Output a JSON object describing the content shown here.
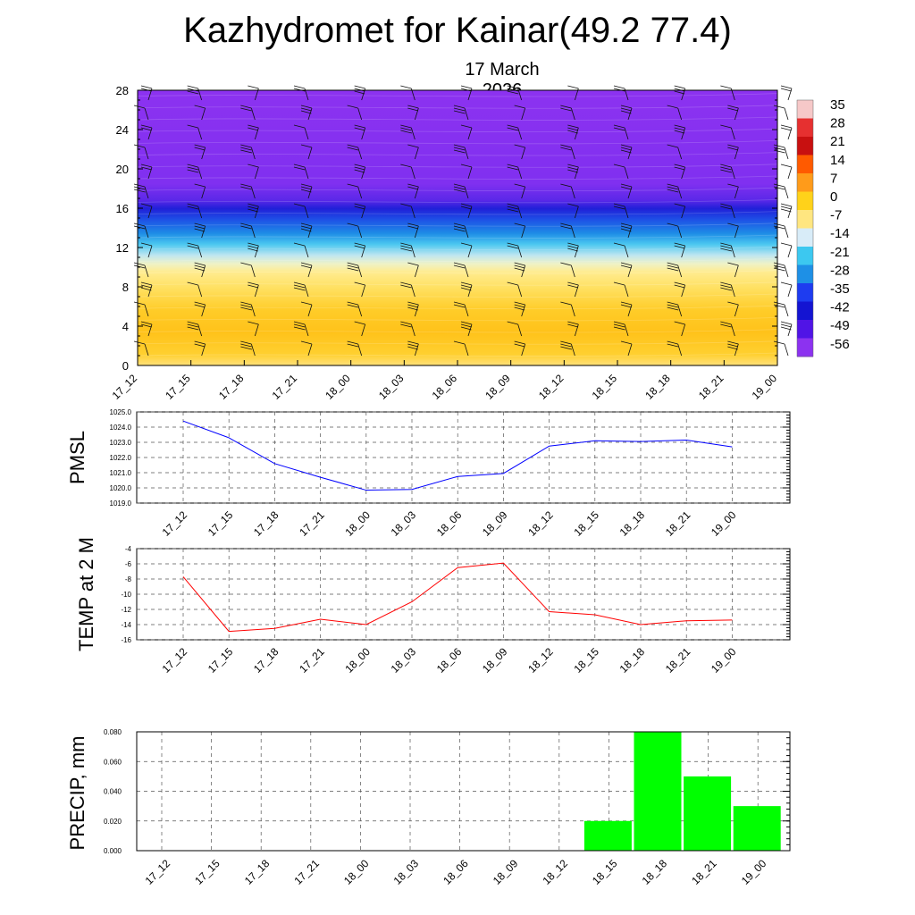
{
  "header": {
    "title": "Kazhydromet for Kainar(49.2 77.4)",
    "date": "17 March 2026"
  },
  "time_labels": [
    "17_12",
    "17_15",
    "17_18",
    "17_21",
    "18_00",
    "18_03",
    "18_06",
    "18_09",
    "18_12",
    "18_15",
    "18_18",
    "18_21",
    "19_00"
  ],
  "chart_data": [
    {
      "type": "heatmap",
      "title": "",
      "ylabel": "",
      "ylim": [
        0,
        28
      ],
      "y_ticks": [
        "0",
        "4",
        "8",
        "12",
        "16",
        "20",
        "24",
        "28"
      ],
      "colorbar": {
        "labels": [
          "35",
          "28",
          "21",
          "14",
          "7",
          "0",
          "-7",
          "-14",
          "-21",
          "-28",
          "-35",
          "-42",
          "-49",
          "-56"
        ],
        "colors": [
          "#f6c8c8",
          "#e63030",
          "#c81010",
          "#ff5a00",
          "#ff9b1a",
          "#ffd21a",
          "#ffe680",
          "#d8ecf8",
          "#3cc8f0",
          "#1e90e6",
          "#1e3cf0",
          "#1414d2",
          "#5014e6",
          "#8c32f0"
        ]
      },
      "temperature_bands": [
        {
          "from": 0,
          "to": 8.5,
          "label": "warm"
        },
        {
          "from": 8.5,
          "to": 11,
          "label": "warm-light"
        },
        {
          "from": 11,
          "to": 14,
          "label": "cyan"
        },
        {
          "from": 14,
          "to": 17,
          "label": "blue"
        },
        {
          "from": 17,
          "to": 28,
          "label": "violet"
        }
      ]
    },
    {
      "type": "line",
      "ylabel": "PMSL",
      "ylim": [
        1019.0,
        1025.0
      ],
      "y_ticks": [
        "1019.0",
        "1020.0",
        "1021.0",
        "1022.0",
        "1023.0",
        "1024.0",
        "1025.0"
      ],
      "series": [
        {
          "color": "#0000ff",
          "values": [
            1024.4,
            1023.3,
            1021.6,
            1020.7,
            1019.85,
            1019.9,
            1020.75,
            1020.95,
            1022.75,
            1023.1,
            1023.05,
            1023.15,
            1022.7
          ]
        }
      ]
    },
    {
      "type": "line",
      "ylabel": "TEMP at 2 M",
      "ylim": [
        -16,
        -4
      ],
      "y_ticks": [
        "-16",
        "-14",
        "-12",
        "-10",
        "-8",
        "-6",
        "-4"
      ],
      "series": [
        {
          "color": "#ff0000",
          "values": [
            -7.7,
            -14.9,
            -14.5,
            -13.3,
            -14.0,
            -11.0,
            -6.5,
            -5.9,
            -12.3,
            -12.7,
            -14.0,
            -13.5,
            -13.4
          ]
        }
      ]
    },
    {
      "type": "bar",
      "ylabel": "PRECIP, mm",
      "ylim": [
        0.0,
        0.08
      ],
      "y_ticks": [
        "0.000",
        "0.020",
        "0.040",
        "0.060",
        "0.080"
      ],
      "bar_color": "#00ff00",
      "values": [
        0,
        0,
        0,
        0,
        0,
        0,
        0,
        0,
        0,
        0.02,
        0.08,
        0.05,
        0.03
      ]
    }
  ]
}
